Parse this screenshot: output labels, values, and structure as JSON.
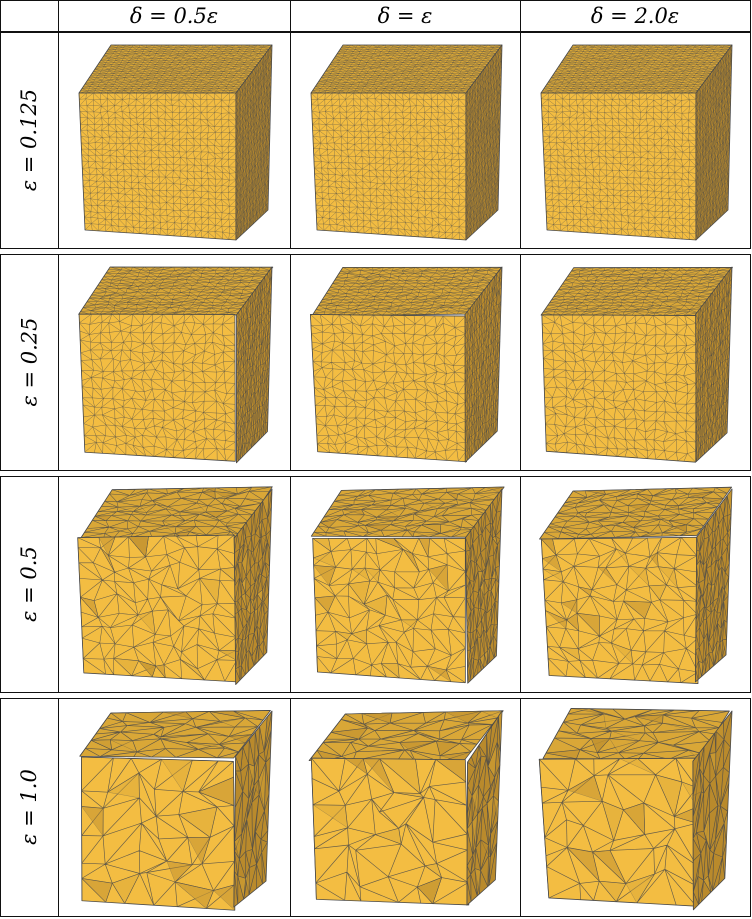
{
  "columns": [
    {
      "label": "δ = 0.5ε"
    },
    {
      "label": "δ = ε"
    },
    {
      "label": "δ = 2.0ε"
    }
  ],
  "rows": [
    {
      "label": "ε = 0.125",
      "mesh_density": 22
    },
    {
      "label": "ε = 0.25",
      "mesh_density": 15
    },
    {
      "label": "ε = 0.5",
      "mesh_density": 9
    },
    {
      "label": "ε = 1.0",
      "mesh_density": 6
    }
  ],
  "colors": {
    "mesh_face": "#f3bd42",
    "mesh_face_shade": "#d9a737",
    "mesh_face_dark": "#b98a2c",
    "mesh_edge": "#4a4a4a",
    "grid_line": "#111111"
  }
}
